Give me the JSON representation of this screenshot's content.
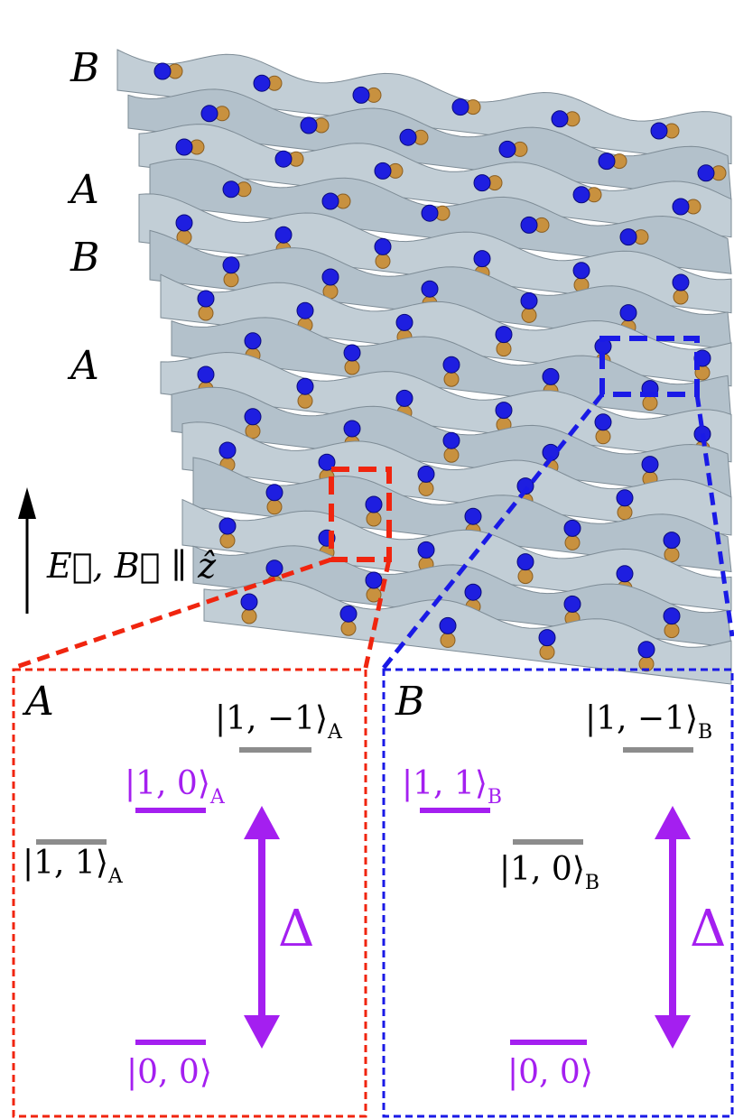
{
  "layers": [
    "B",
    "A",
    "B",
    "A"
  ],
  "field_label": "E⃗, B⃗ ∥ ẑ",
  "panels": [
    {
      "label": "A",
      "states": [
        {
          "ket": "|1, −1⟩",
          "sub": "A"
        },
        {
          "ket": "|1, 0⟩",
          "sub": "A"
        },
        {
          "ket": "|1, 1⟩",
          "sub": "A"
        },
        {
          "ket": "|0, 0⟩"
        }
      ],
      "gap": "Δ"
    },
    {
      "label": "B",
      "states": [
        {
          "ket": "|1, −1⟩",
          "sub": "B"
        },
        {
          "ket": "|1, 1⟩",
          "sub": "B"
        },
        {
          "ket": "|1, 0⟩",
          "sub": "B"
        },
        {
          "ket": "|0, 0⟩"
        }
      ],
      "gap": "Δ"
    }
  ]
}
